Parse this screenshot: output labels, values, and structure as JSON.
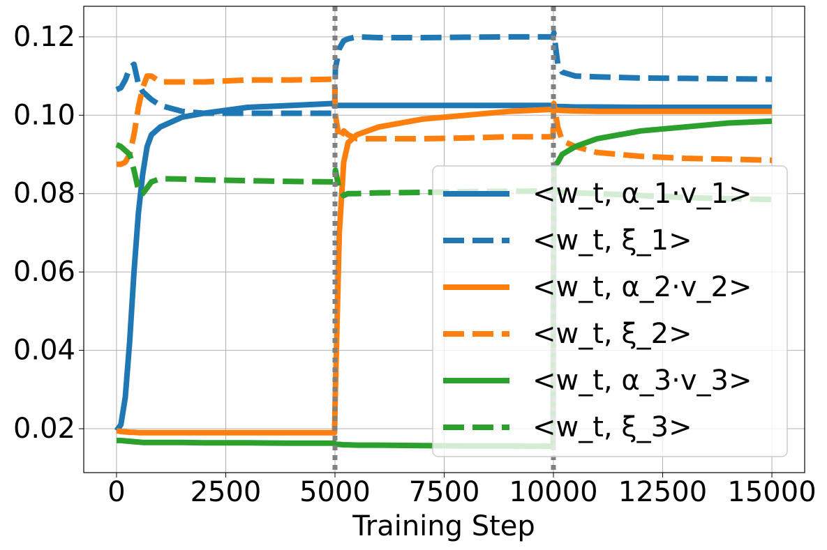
{
  "chart_data": {
    "type": "line",
    "xlabel": "Training Step",
    "x": [
      0,
      100,
      200,
      300,
      400,
      500,
      600,
      700,
      800,
      1000,
      1500,
      2000,
      3000,
      4000,
      4990,
      5010,
      5100,
      5200,
      5300,
      5500,
      6000,
      7000,
      8000,
      9000,
      9990,
      10010,
      10100,
      10200,
      10500,
      11000,
      12000,
      13000,
      14000,
      15000
    ],
    "series": [
      {
        "name": "<w_t, α_1·v_1>",
        "color": "#1f77b4",
        "linestyle": "solid",
        "values": [
          0.0195,
          0.021,
          0.028,
          0.042,
          0.06,
          0.075,
          0.085,
          0.092,
          0.095,
          0.097,
          0.0995,
          0.1005,
          0.102,
          0.1025,
          0.103,
          0.1025,
          0.1025,
          0.1025,
          0.1025,
          0.1025,
          0.1025,
          0.1025,
          0.1025,
          0.1025,
          0.1025,
          0.1022,
          0.1022,
          0.1022,
          0.1021,
          0.1021,
          0.102,
          0.102,
          0.102,
          0.102
        ]
      },
      {
        "name": "<w_t, ξ_1>",
        "color": "#1f77b4",
        "linestyle": "dashed",
        "values": [
          0.1065,
          0.107,
          0.109,
          0.112,
          0.113,
          0.108,
          0.106,
          0.105,
          0.104,
          0.1025,
          0.101,
          0.1005,
          0.1005,
          0.1005,
          0.1005,
          0.112,
          0.117,
          0.119,
          0.1195,
          0.12,
          0.1198,
          0.1198,
          0.1199,
          0.12,
          0.12,
          0.121,
          0.113,
          0.111,
          0.11,
          0.1098,
          0.1095,
          0.1094,
          0.1093,
          0.1092
        ]
      },
      {
        "name": "<w_t, α_2·v_2>",
        "color": "#ff7f0e",
        "linestyle": "solid",
        "values": [
          0.0195,
          0.0193,
          0.0192,
          0.0191,
          0.0191,
          0.019,
          0.019,
          0.019,
          0.019,
          0.019,
          0.019,
          0.019,
          0.019,
          0.019,
          0.019,
          0.03,
          0.07,
          0.088,
          0.093,
          0.095,
          0.097,
          0.099,
          0.1,
          0.101,
          0.1015,
          0.1015,
          0.1013,
          0.1012,
          0.1011,
          0.101,
          0.101,
          0.101,
          0.101,
          0.101
        ]
      },
      {
        "name": "<w_t, ξ_2>",
        "color": "#ff7f0e",
        "linestyle": "dashed",
        "values": [
          0.0875,
          0.0875,
          0.088,
          0.09,
          0.095,
          0.102,
          0.107,
          0.11,
          0.11,
          0.1085,
          0.1085,
          0.1085,
          0.109,
          0.109,
          0.1092,
          0.1,
          0.094,
          0.096,
          0.095,
          0.094,
          0.094,
          0.094,
          0.0942,
          0.0945,
          0.0945,
          0.103,
          0.097,
          0.0935,
          0.092,
          0.0905,
          0.0895,
          0.089,
          0.0888,
          0.0885
        ]
      },
      {
        "name": "<w_t, α_3·v_3>",
        "color": "#2ca02c",
        "linestyle": "solid",
        "values": [
          0.017,
          0.017,
          0.0169,
          0.0168,
          0.0167,
          0.0166,
          0.0165,
          0.0165,
          0.0165,
          0.0165,
          0.0165,
          0.0164,
          0.0164,
          0.0163,
          0.0163,
          0.016,
          0.016,
          0.0159,
          0.0159,
          0.0158,
          0.0158,
          0.0157,
          0.0156,
          0.0156,
          0.0155,
          0.087,
          0.088,
          0.09,
          0.092,
          0.094,
          0.096,
          0.097,
          0.098,
          0.0985
        ]
      },
      {
        "name": "<w_t, ξ_3>",
        "color": "#2ca02c",
        "linestyle": "dashed",
        "values": [
          0.0925,
          0.092,
          0.091,
          0.09,
          0.086,
          0.081,
          0.08,
          0.0815,
          0.083,
          0.0838,
          0.0837,
          0.0835,
          0.0833,
          0.0831,
          0.083,
          0.086,
          0.081,
          0.0795,
          0.08,
          0.08,
          0.0802,
          0.0803,
          0.0805,
          0.0806,
          0.0807,
          0.0805,
          0.0804,
          0.0803,
          0.0802,
          0.08,
          0.0795,
          0.079,
          0.0787,
          0.0785
        ]
      }
    ],
    "vlines": [
      5000,
      10000
    ],
    "vline_color": "#808080",
    "xlim": [
      -750,
      15750
    ],
    "xticks": [
      0,
      2500,
      5000,
      7500,
      10000,
      12500,
      15000
    ],
    "ylim": [
      0.0088,
      0.1278
    ],
    "yticks": [
      0.02,
      0.04,
      0.06,
      0.08,
      {
        "value": 0.1,
        "label": "0.10"
      },
      0.12
    ],
    "grid": true,
    "legend": "lower right"
  }
}
